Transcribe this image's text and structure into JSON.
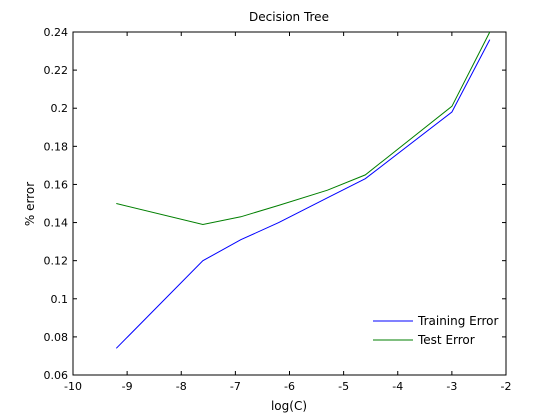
{
  "chart_data": {
    "type": "line",
    "title": "Decision Tree",
    "xlabel": "log(C)",
    "ylabel": "% error",
    "xlim": [
      -10,
      -2
    ],
    "ylim": [
      0.06,
      0.24
    ],
    "xticks": [
      -10,
      -9,
      -8,
      -7,
      -6,
      -5,
      -4,
      -3,
      -2
    ],
    "xtick_labels": [
      "-10",
      "-9",
      "-8",
      "-7",
      "-6",
      "-5",
      "-4",
      "-3",
      "-2"
    ],
    "yticks": [
      0.06,
      0.08,
      0.1,
      0.12,
      0.14,
      0.16,
      0.18,
      0.2,
      0.22,
      0.24
    ],
    "ytick_labels": [
      "0.06",
      "0.08",
      "0.1",
      "0.12",
      "0.14",
      "0.16",
      "0.18",
      "0.2",
      "0.22",
      "0.24"
    ],
    "grid": false,
    "legend_position": "bottom-right",
    "series": [
      {
        "name": "Training Error",
        "color": "#0000ff",
        "x": [
          -9.2,
          -7.6,
          -6.9,
          -6.2,
          -5.3,
          -4.6,
          -3.0,
          -2.3
        ],
        "y": [
          0.074,
          0.12,
          0.131,
          0.14,
          0.153,
          0.163,
          0.198,
          0.236
        ]
      },
      {
        "name": "Test Error",
        "color": "#007f00",
        "x": [
          -9.2,
          -7.6,
          -6.9,
          -6.2,
          -5.3,
          -4.6,
          -3.0,
          -2.3
        ],
        "y": [
          0.15,
          0.139,
          0.143,
          0.149,
          0.157,
          0.165,
          0.201,
          0.24
        ]
      }
    ]
  }
}
